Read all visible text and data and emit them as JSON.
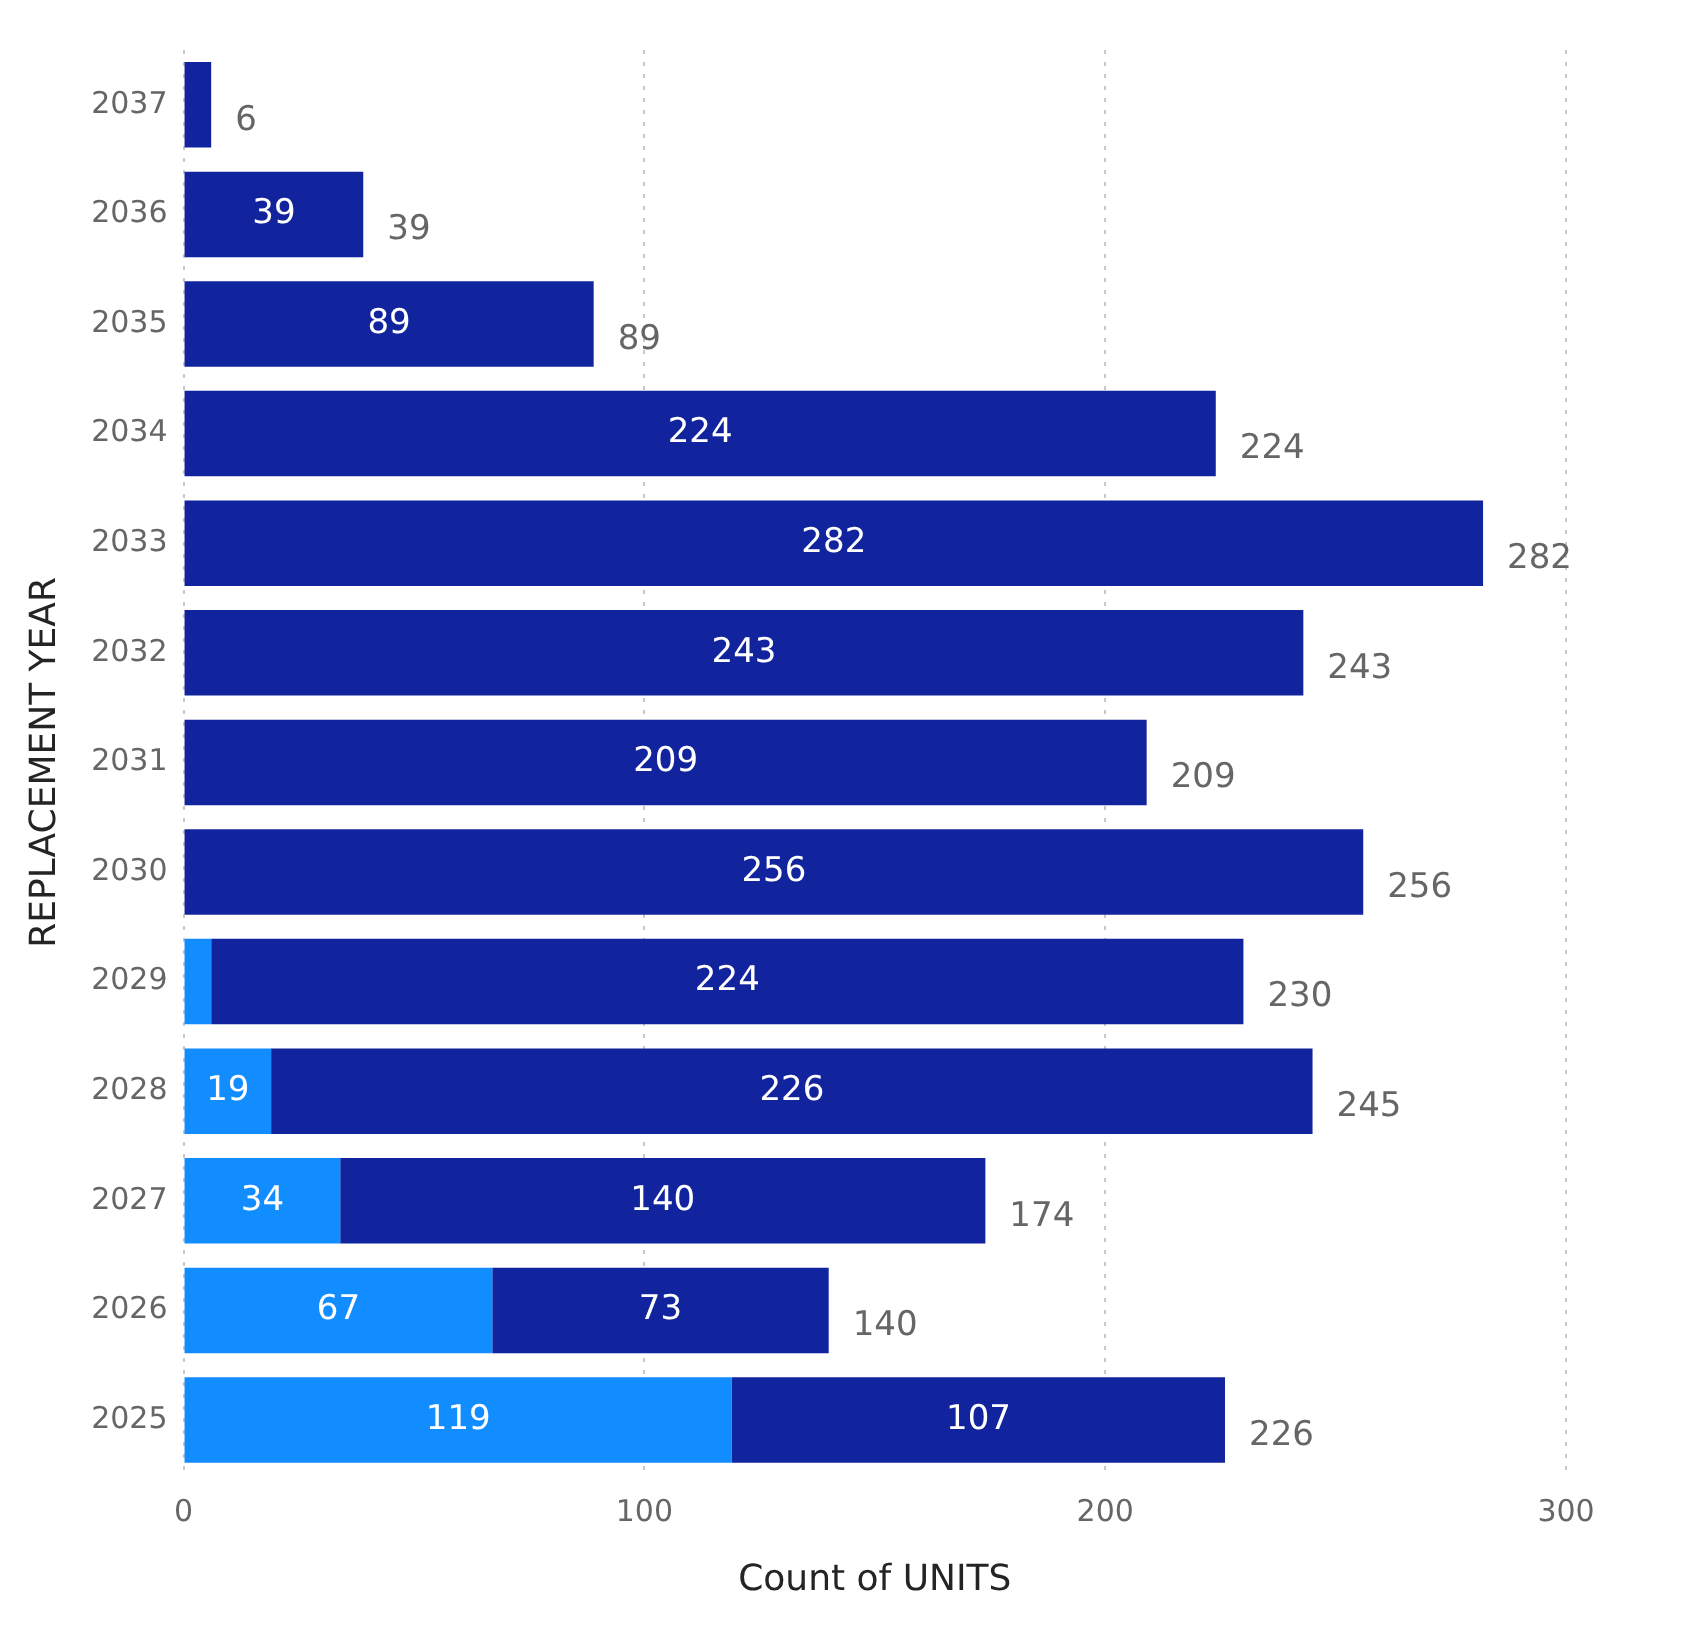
{
  "chart_data": {
    "type": "bar",
    "orientation": "horizontal",
    "stacked": true,
    "xlabel": "Count of UNITS",
    "ylabel": "REPLACEMENT YEAR",
    "categories": [
      "2037",
      "2036",
      "2035",
      "2034",
      "2033",
      "2032",
      "2031",
      "2030",
      "2029",
      "2028",
      "2027",
      "2026",
      "2025"
    ],
    "series": [
      {
        "color": "#118dff",
        "values": [
          null,
          null,
          null,
          null,
          null,
          null,
          null,
          null,
          6,
          19,
          34,
          67,
          119
        ],
        "value_labels": [
          null,
          null,
          null,
          null,
          null,
          null,
          null,
          null,
          null,
          "19",
          "34",
          "67",
          "119"
        ]
      },
      {
        "color": "#12239e",
        "values": [
          6,
          39,
          89,
          224,
          282,
          243,
          209,
          256,
          224,
          226,
          140,
          73,
          107
        ],
        "value_labels": [
          null,
          "39",
          "89",
          "224",
          "282",
          "243",
          "209",
          "256",
          "224",
          "226",
          "140",
          "73",
          "107"
        ]
      }
    ],
    "totals": [
      "6",
      "39",
      "89",
      "224",
      "282",
      "243",
      "209",
      "256",
      "230",
      "245",
      "174",
      "140",
      "226"
    ],
    "xlim": [
      0,
      300
    ],
    "xticks": [
      0,
      100,
      200,
      300
    ],
    "grid": "x",
    "legend": false
  }
}
